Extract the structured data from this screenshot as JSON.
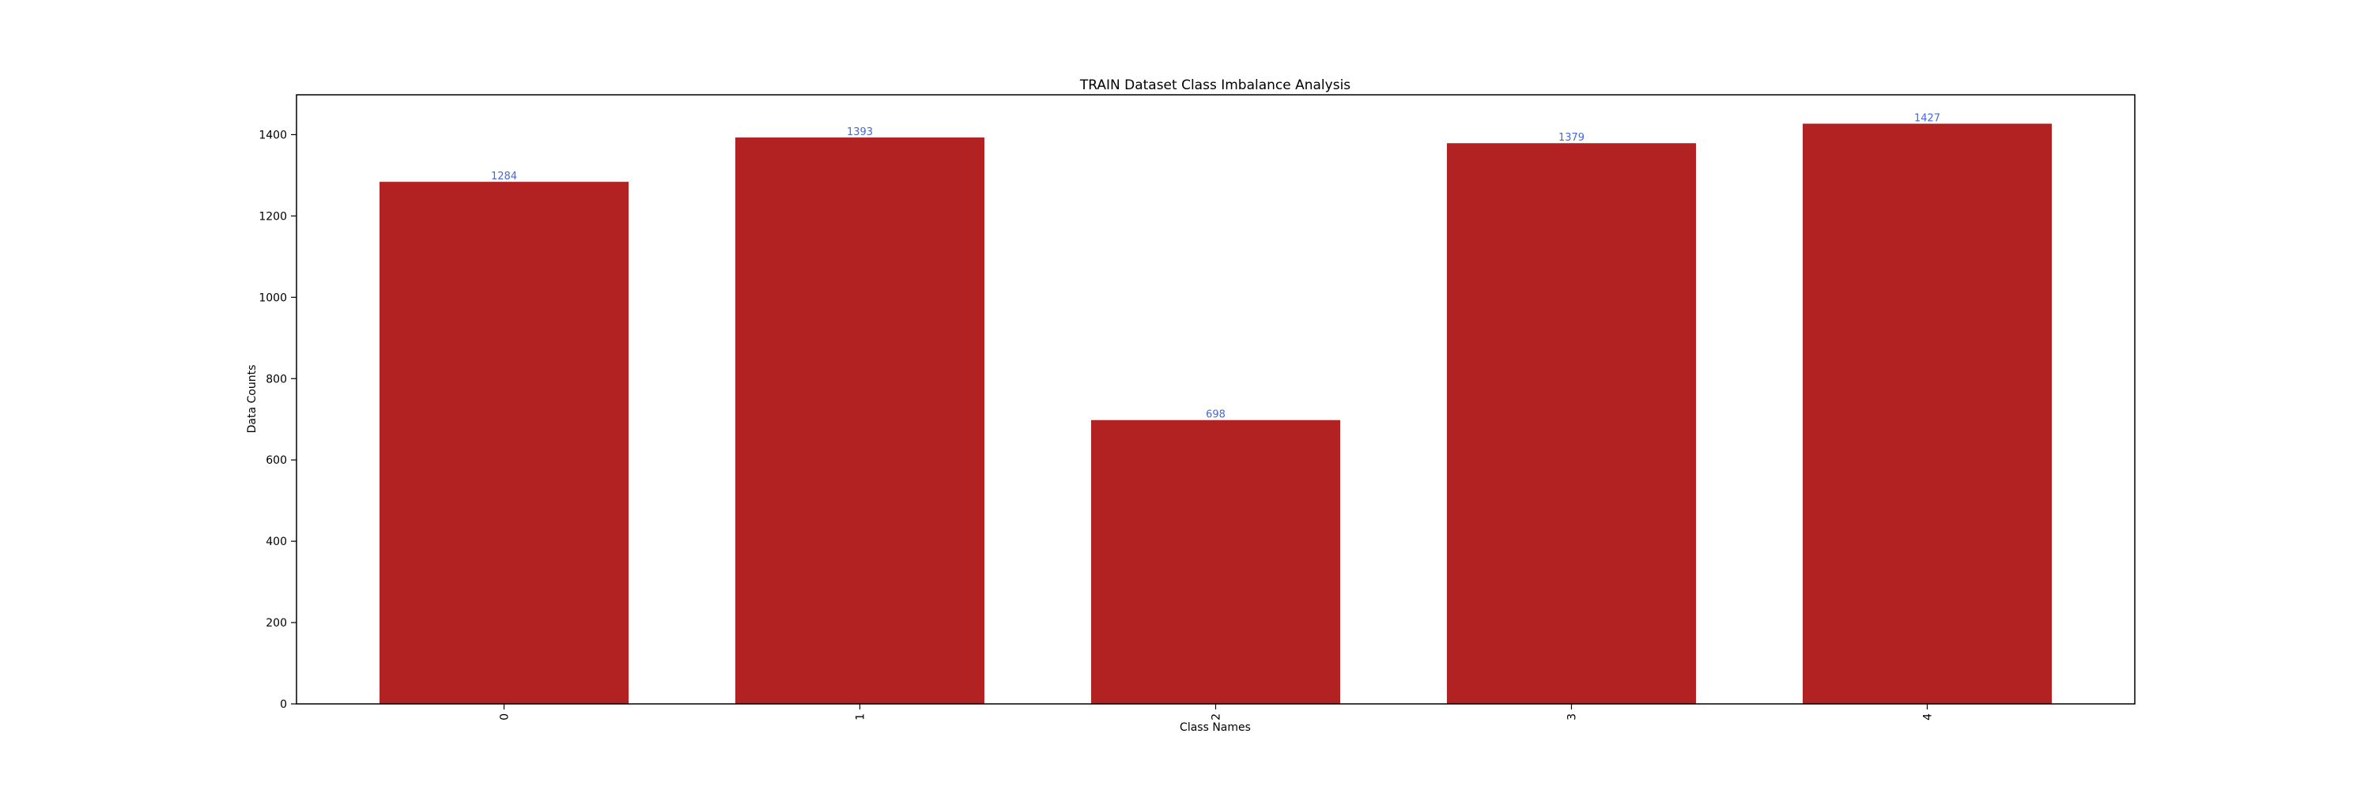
{
  "chart_data": {
    "type": "bar",
    "title": "TRAIN Dataset Class Imbalance Analysis",
    "xlabel": "Class Names",
    "ylabel": "Data Counts",
    "categories": [
      "0",
      "1",
      "2",
      "3",
      "4"
    ],
    "values": [
      1284,
      1393,
      698,
      1379,
      1427
    ],
    "data_labels": [
      "1284",
      "1393",
      "698",
      "1379",
      "1427"
    ],
    "ylim": [
      0,
      1498
    ],
    "yticks": [
      0,
      200,
      400,
      600,
      800,
      1000,
      1200,
      1400
    ],
    "ytick_labels": [
      "0",
      "200",
      "400",
      "600",
      "800",
      "1000",
      "1200",
      "1400"
    ],
    "xtick_rotation": "vertical",
    "grid": false,
    "legend": "none",
    "colors": {
      "bar": "#b22222",
      "data_label": "#4169e1",
      "axis": "#000000"
    }
  }
}
